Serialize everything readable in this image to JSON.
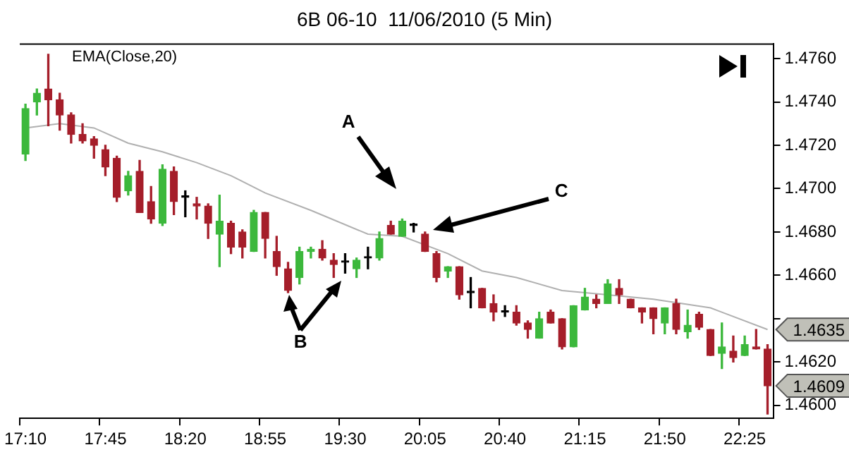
{
  "chart_data": {
    "type": "candlestick",
    "title": "6B 06-10  11/06/2010 (5 Min)",
    "categories": [
      "17:10",
      null,
      null,
      null,
      null,
      null,
      null,
      "17:45",
      null,
      null,
      null,
      null,
      null,
      null,
      "18:20",
      null,
      null,
      null,
      null,
      null,
      null,
      "18:55",
      null,
      null,
      null,
      null,
      null,
      null,
      "19:30",
      null,
      null,
      null,
      null,
      null,
      null,
      "20:05",
      null,
      null,
      null,
      null,
      null,
      null,
      "20:40",
      null,
      null,
      null,
      null,
      null,
      null,
      "21:15",
      null,
      null,
      null,
      null,
      null,
      null,
      "21:50",
      null,
      null,
      null,
      null,
      null,
      null,
      "22:25",
      null,
      null
    ],
    "ohlc": [
      [
        1.4716,
        1.4739,
        1.4713,
        1.4737
      ],
      [
        1.474,
        1.4746,
        1.4734,
        1.4744
      ],
      [
        1.4746,
        1.4762,
        1.4729,
        1.4741
      ],
      [
        1.4741,
        1.4744,
        1.4727,
        1.4734
      ],
      [
        1.4734,
        1.4735,
        1.4721,
        1.4725
      ],
      [
        1.4725,
        1.473,
        1.4721,
        1.4722
      ],
      [
        1.4723,
        1.4724,
        1.4714,
        1.472
      ],
      [
        1.4718,
        1.472,
        1.4706,
        1.471
      ],
      [
        1.4714,
        1.4715,
        1.4694,
        1.4696
      ],
      [
        1.4699,
        1.4708,
        1.4697,
        1.4706
      ],
      [
        1.4708,
        1.4713,
        1.4689,
        1.4689
      ],
      [
        1.4694,
        1.4701,
        1.4684,
        1.4686
      ],
      [
        1.4684,
        1.4711,
        1.4683,
        1.4709
      ],
      [
        1.4708,
        1.471,
        1.4688,
        1.4694
      ],
      [
        1.4696,
        1.4699,
        1.4687,
        1.4696
      ],
      [
        1.4693,
        1.4696,
        1.4686,
        1.4692
      ],
      [
        1.4692,
        1.4693,
        1.4677,
        1.4684
      ],
      [
        1.4679,
        1.4697,
        1.4664,
        1.4685
      ],
      [
        1.4684,
        1.4685,
        1.467,
        1.4673
      ],
      [
        1.468,
        1.4681,
        1.4668,
        1.4673
      ],
      [
        1.4671,
        1.469,
        1.4671,
        1.4689
      ],
      [
        1.4689,
        1.4689,
        1.4668,
        1.4677
      ],
      [
        1.4671,
        1.4678,
        1.466,
        1.4664
      ],
      [
        1.4663,
        1.4666,
        1.4652,
        1.4653
      ],
      [
        1.4659,
        1.4673,
        1.4656,
        1.4671
      ],
      [
        1.4671,
        1.4673,
        1.4668,
        1.4672
      ],
      [
        1.4672,
        1.4676,
        1.4667,
        1.4668
      ],
      [
        1.4667,
        1.467,
        1.4659,
        1.4665
      ],
      [
        1.4666,
        1.467,
        1.4661,
        1.4666
      ],
      [
        1.4663,
        1.4668,
        1.4659,
        1.4667
      ],
      [
        1.4668,
        1.4673,
        1.4663,
        1.4668
      ],
      [
        1.4668,
        1.468,
        1.4667,
        1.4677
      ],
      [
        1.4683,
        1.4685,
        1.4679,
        1.4679
      ],
      [
        1.4678,
        1.4686,
        1.4678,
        1.4685
      ],
      [
        1.4683,
        1.4684,
        1.468,
        1.4683
      ],
      [
        1.4679,
        1.468,
        1.4671,
        1.4671
      ],
      [
        1.467,
        1.4671,
        1.4657,
        1.4659
      ],
      [
        1.4662,
        1.4664,
        1.4659,
        1.4664
      ],
      [
        1.4664,
        1.4664,
        1.4649,
        1.4651
      ],
      [
        1.4652,
        1.4659,
        1.4645,
        1.4652
      ],
      [
        1.4654,
        1.4654,
        1.4645,
        1.4645
      ],
      [
        1.4647,
        1.4651,
        1.4639,
        1.4643
      ],
      [
        1.4643,
        1.4646,
        1.4641,
        1.4643
      ],
      [
        1.4643,
        1.4646,
        1.4637,
        1.4638
      ],
      [
        1.4638,
        1.4639,
        1.4631,
        1.4635
      ],
      [
        1.4631,
        1.4643,
        1.4631,
        1.464
      ],
      [
        1.4643,
        1.4644,
        1.4638,
        1.4638
      ],
      [
        1.464,
        1.464,
        1.4626,
        1.4627
      ],
      [
        1.4627,
        1.4646,
        1.4627,
        1.4646
      ],
      [
        1.4644,
        1.4654,
        1.4644,
        1.465
      ],
      [
        1.4649,
        1.4651,
        1.4645,
        1.4647
      ],
      [
        1.4647,
        1.4658,
        1.4647,
        1.4656
      ],
      [
        1.4654,
        1.4658,
        1.4647,
        1.4651
      ],
      [
        1.4649,
        1.4649,
        1.4645,
        1.4645
      ],
      [
        1.4645,
        1.4645,
        1.4638,
        1.4643
      ],
      [
        1.4645,
        1.4645,
        1.4633,
        1.464
      ],
      [
        1.4638,
        1.4645,
        1.4633,
        1.4645
      ],
      [
        1.4647,
        1.4649,
        1.4633,
        1.4635
      ],
      [
        1.4634,
        1.4644,
        1.4631,
        1.4637
      ],
      [
        1.4642,
        1.4643,
        1.4635,
        1.4636
      ],
      [
        1.4635,
        1.4635,
        1.4623,
        1.4623
      ],
      [
        1.4624,
        1.4638,
        1.4617,
        1.4627
      ],
      [
        1.4625,
        1.4632,
        1.462,
        1.4622
      ],
      [
        1.4623,
        1.4632,
        1.4623,
        1.4628
      ],
      [
        1.4627,
        1.4635,
        1.4626,
        1.4626
      ],
      [
        1.4626,
        1.4628,
        1.4596,
        1.4609
      ]
    ],
    "colors": [
      "#3cb83c",
      "#3cb83c",
      "#a51e2a",
      "#a51e2a",
      "#a51e2a",
      "#a51e2a",
      "#a51e2a",
      "#a51e2a",
      "#a51e2a",
      "#3cb83c",
      "#a51e2a",
      "#a51e2a",
      "#3cb83c",
      "#a51e2a",
      "#000000",
      "#a51e2a",
      "#a51e2a",
      "#3cb83c",
      "#a51e2a",
      "#a51e2a",
      "#3cb83c",
      "#a51e2a",
      "#a51e2a",
      "#a51e2a",
      "#3cb83c",
      "#3cb83c",
      "#a51e2a",
      "#a51e2a",
      "#000000",
      "#3cb83c",
      "#000000",
      "#3cb83c",
      "#a51e2a",
      "#3cb83c",
      "#000000",
      "#a51e2a",
      "#a51e2a",
      "#3cb83c",
      "#a51e2a",
      "#000000",
      "#a51e2a",
      "#a51e2a",
      "#000000",
      "#a51e2a",
      "#a51e2a",
      "#3cb83c",
      "#a51e2a",
      "#a51e2a",
      "#3cb83c",
      "#3cb83c",
      "#a51e2a",
      "#3cb83c",
      "#a51e2a",
      "#a51e2a",
      "#a51e2a",
      "#a51e2a",
      "#3cb83c",
      "#a51e2a",
      "#3cb83c",
      "#a51e2a",
      "#a51e2a",
      "#3cb83c",
      "#a51e2a",
      "#3cb83c",
      "#a51e2a",
      "#a51e2a"
    ],
    "series": [
      {
        "name": "EMA(Close,20)",
        "type": "line",
        "color": "#b0b0b0",
        "values": [
          1.4728,
          null,
          null,
          1.473,
          null,
          null,
          1.4728,
          null,
          null,
          1.4721,
          null,
          null,
          1.4717,
          null,
          null,
          1.4712,
          null,
          null,
          1.4706,
          null,
          null,
          1.4698,
          null,
          null,
          null,
          1.469,
          null,
          null,
          null,
          null,
          1.4679,
          null,
          null,
          1.4678,
          null,
          null,
          null,
          1.467,
          null,
          null,
          1.4662,
          null,
          null,
          1.4659,
          null,
          null,
          null,
          1.4653,
          null,
          null,
          null,
          1.4651,
          null,
          null,
          null,
          1.4649,
          null,
          null,
          null,
          null,
          1.4645,
          null,
          null,
          null,
          null,
          1.4635
        ]
      }
    ],
    "ylim": [
      1.4594,
      1.4767
    ],
    "yticks": [
      {
        "value": 1.46,
        "label": "1.4600"
      },
      {
        "value": 1.462,
        "label": "1.4620"
      },
      {
        "value": 1.464,
        "label": null
      },
      {
        "value": 1.466,
        "label": "1.4660"
      },
      {
        "value": 1.468,
        "label": "1.4680"
      },
      {
        "value": 1.47,
        "label": "1.4700"
      },
      {
        "value": 1.472,
        "label": "1.4720"
      },
      {
        "value": 1.474,
        "label": "1.4740"
      },
      {
        "value": 1.476,
        "label": "1.4760"
      }
    ],
    "annotations": [
      "A",
      "B",
      "C",
      "1.4635",
      "1.4609"
    ],
    "grid": false,
    "legend": false
  }
}
